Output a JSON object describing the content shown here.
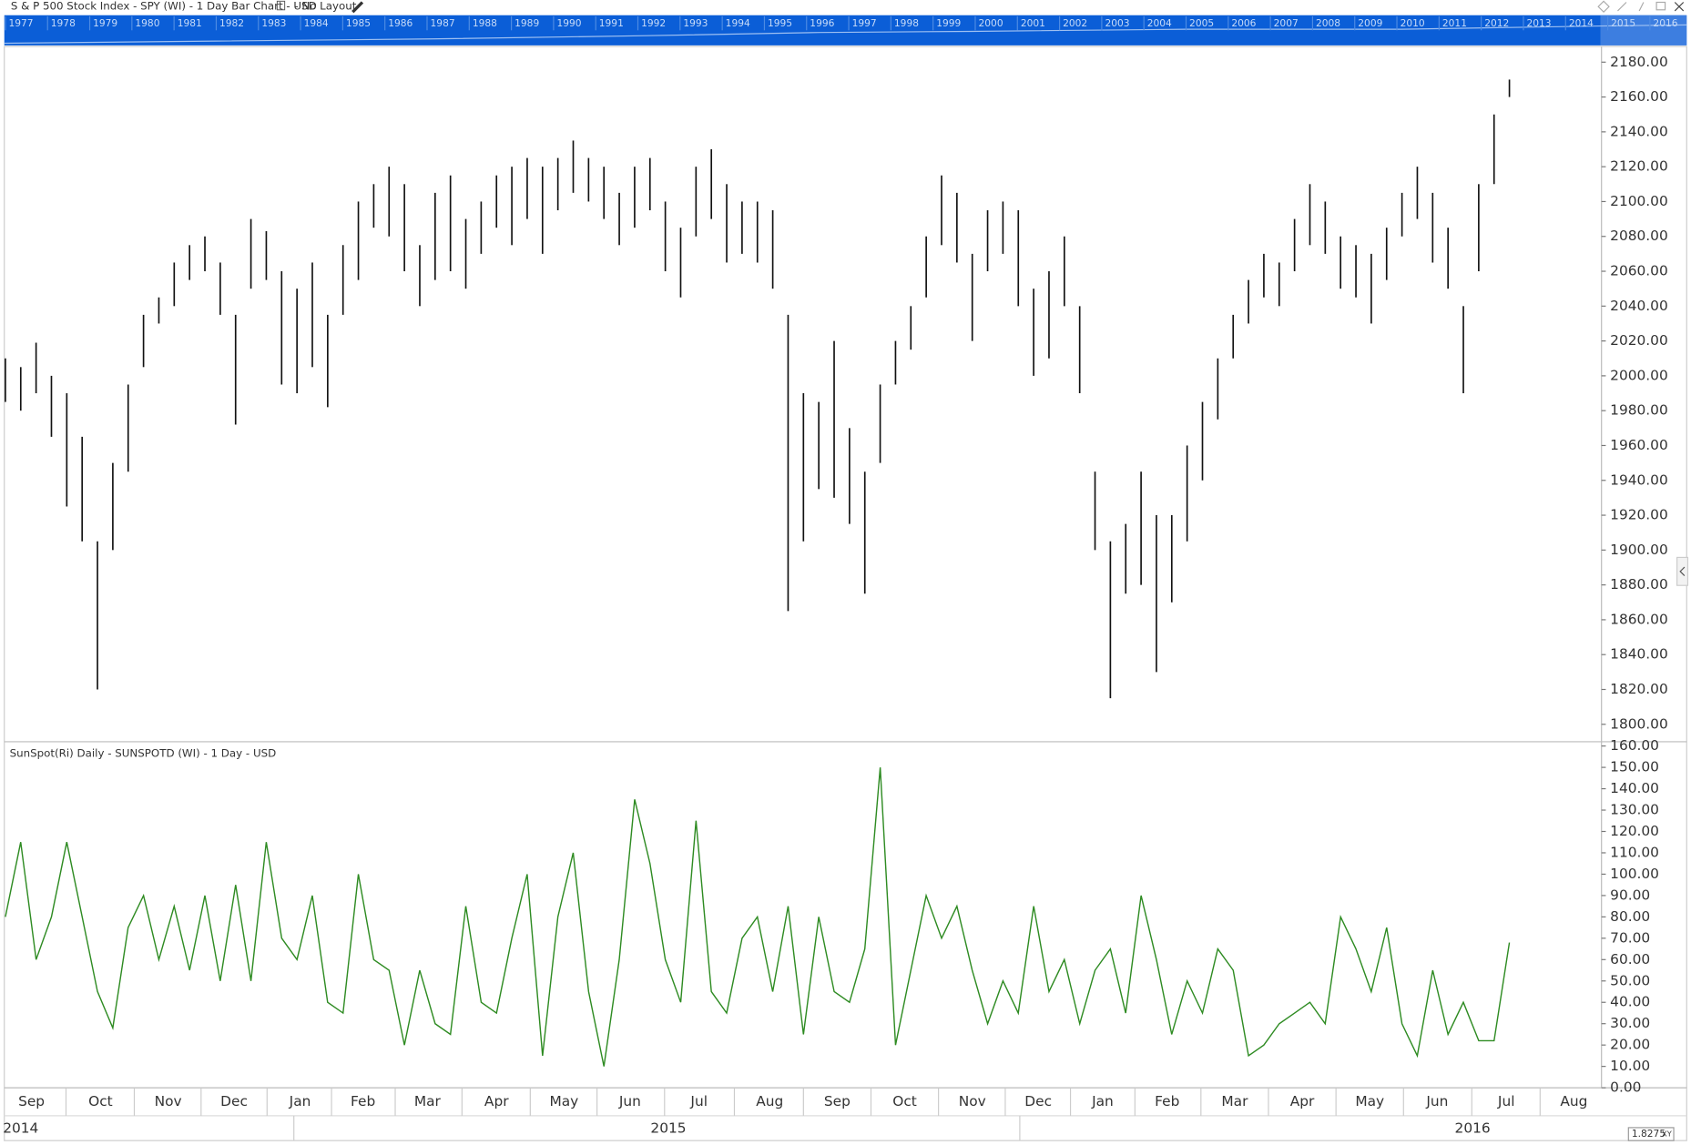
{
  "ui": {
    "layout": "- No Layout",
    "scale_box": "1.8275",
    "xy": "XY"
  },
  "navigator": {
    "years": [
      "1977",
      "1978",
      "1979",
      "1980",
      "1981",
      "1982",
      "1983",
      "1984",
      "1985",
      "1986",
      "1987",
      "1988",
      "1989",
      "1990",
      "1991",
      "1992",
      "1993",
      "1994",
      "1995",
      "1996",
      "1997",
      "1998",
      "1999",
      "2000",
      "2001",
      "2002",
      "2003",
      "2004",
      "2005",
      "2006",
      "2007",
      "2008",
      "2009",
      "2010",
      "2011",
      "2012",
      "2013",
      "2014",
      "2015",
      "2016"
    ]
  },
  "chart_data": [
    {
      "type": "range-bar",
      "title": "S & P 500 Stock Index - SPY (WI) - 1 Day Bar Chart - USD",
      "color": "#111111",
      "x": [
        0,
        1,
        2,
        3,
        4,
        5,
        6,
        7,
        8,
        9,
        10,
        11,
        12,
        13,
        14,
        15,
        16,
        17,
        18,
        19,
        20,
        21,
        22,
        23,
        24,
        25,
        26,
        27,
        28,
        29,
        30,
        31,
        32,
        33,
        34,
        35,
        36,
        37,
        38,
        39,
        40,
        41,
        42,
        43,
        44,
        45,
        46,
        47,
        48,
        49,
        50,
        51,
        52,
        53,
        54,
        55,
        56,
        57,
        58,
        59,
        60,
        61,
        62,
        63,
        64,
        65,
        66,
        67,
        68,
        69,
        70,
        71,
        72,
        73,
        74,
        75,
        76,
        77,
        78,
        79,
        80,
        81,
        82,
        83,
        84,
        85,
        86,
        87,
        88,
        89,
        90,
        91,
        92,
        93,
        94,
        95,
        96,
        97,
        98
      ],
      "high": [
        2010,
        2005,
        2019,
        2000,
        1990,
        1965,
        1905,
        1950,
        1995,
        2035,
        2045,
        2065,
        2075,
        2080,
        2065,
        2035,
        2090,
        2083,
        2060,
        2050,
        2065,
        2035,
        2075,
        2100,
        2110,
        2120,
        2110,
        2075,
        2105,
        2115,
        2090,
        2100,
        2115,
        2120,
        2125,
        2120,
        2125,
        2135,
        2125,
        2120,
        2105,
        2120,
        2125,
        2100,
        2085,
        2120,
        2130,
        2110,
        2100,
        2100,
        2095,
        2035,
        1990,
        1985,
        2020,
        1970,
        1945,
        1995,
        2020,
        2040,
        2080,
        2115,
        2105,
        2070,
        2095,
        2100,
        2095,
        2050,
        2060,
        2080,
        2040,
        1945,
        1905,
        1915,
        1945,
        1920,
        1920,
        1960,
        1985,
        2010,
        2035,
        2055,
        2070,
        2065,
        2090,
        2110,
        2100,
        2080,
        2075,
        2070,
        2085,
        2105,
        2120,
        2105,
        2085,
        2040,
        2110,
        2150,
        2170
      ],
      "low": [
        1985,
        1980,
        1990,
        1965,
        1925,
        1905,
        1820,
        1900,
        1945,
        2005,
        2030,
        2040,
        2055,
        2060,
        2035,
        1972,
        2050,
        2055,
        1995,
        1990,
        2005,
        1982,
        2035,
        2055,
        2085,
        2080,
        2060,
        2040,
        2055,
        2060,
        2050,
        2070,
        2085,
        2075,
        2090,
        2070,
        2095,
        2105,
        2100,
        2090,
        2075,
        2085,
        2095,
        2060,
        2045,
        2080,
        2090,
        2065,
        2070,
        2065,
        2050,
        1865,
        1905,
        1935,
        1930,
        1915,
        1875,
        1950,
        1995,
        2015,
        2045,
        2075,
        2065,
        2020,
        2060,
        2070,
        2040,
        2000,
        2010,
        2040,
        1990,
        1900,
        1815,
        1875,
        1880,
        1830,
        1870,
        1905,
        1940,
        1975,
        2010,
        2030,
        2045,
        2040,
        2060,
        2075,
        2070,
        2050,
        2045,
        2030,
        2055,
        2080,
        2090,
        2065,
        2050,
        1990,
        2060,
        2110,
        2160
      ],
      "xlim": [
        0,
        104
      ],
      "ylim": [
        1790,
        2189
      ],
      "yticks": [
        {
          "value": 1800,
          "label": "1800.00"
        },
        {
          "value": 1820,
          "label": "1820.00"
        },
        {
          "value": 1840,
          "label": "1840.00"
        },
        {
          "value": 1860,
          "label": "1860.00"
        },
        {
          "value": 1880,
          "label": "1880.00"
        },
        {
          "value": 1900,
          "label": "1900.00"
        },
        {
          "value": 1920,
          "label": "1920.00"
        },
        {
          "value": 1940,
          "label": "1940.00"
        },
        {
          "value": 1960,
          "label": "1960.00"
        },
        {
          "value": 1980,
          "label": "1980.00"
        },
        {
          "value": 2000,
          "label": "2000.00"
        },
        {
          "value": 2020,
          "label": "2020.00"
        },
        {
          "value": 2040,
          "label": "2040.00"
        },
        {
          "value": 2060,
          "label": "2060.00"
        },
        {
          "value": 2080,
          "label": "2080.00"
        },
        {
          "value": 2100,
          "label": "2100.00"
        },
        {
          "value": 2120,
          "label": "2120.00"
        },
        {
          "value": 2140,
          "label": "2140.00"
        },
        {
          "value": 2160,
          "label": "2160.00"
        },
        {
          "value": 2180,
          "label": "2180.00"
        }
      ],
      "xticks": [
        {
          "value": 1.7,
          "label": "Sep"
        },
        {
          "value": 6.2,
          "label": "Oct"
        },
        {
          "value": 10.6,
          "label": "Nov"
        },
        {
          "value": 14.9,
          "label": "Dec"
        },
        {
          "value": 19.2,
          "label": "Jan"
        },
        {
          "value": 23.3,
          "label": "Feb"
        },
        {
          "value": 27.5,
          "label": "Mar"
        },
        {
          "value": 32.0,
          "label": "Apr"
        },
        {
          "value": 36.4,
          "label": "May"
        },
        {
          "value": 40.7,
          "label": "Jun"
        },
        {
          "value": 45.2,
          "label": "Jul"
        },
        {
          "value": 49.8,
          "label": "Aug"
        },
        {
          "value": 54.2,
          "label": "Sep"
        },
        {
          "value": 58.6,
          "label": "Oct"
        },
        {
          "value": 63.0,
          "label": "Nov"
        },
        {
          "value": 67.3,
          "label": "Dec"
        },
        {
          "value": 71.5,
          "label": "Jan"
        },
        {
          "value": 75.7,
          "label": "Feb"
        },
        {
          "value": 80.1,
          "label": "Mar"
        },
        {
          "value": 84.5,
          "label": "Apr"
        },
        {
          "value": 88.9,
          "label": "May"
        },
        {
          "value": 93.3,
          "label": "Jun"
        },
        {
          "value": 97.8,
          "label": "Jul"
        },
        {
          "value": 102.2,
          "label": "Aug"
        }
      ],
      "year_ticks": [
        {
          "value": 1.0,
          "label": "2014"
        },
        {
          "value": 43.2,
          "label": "2015"
        },
        {
          "value": 95.6,
          "label": "2016"
        }
      ]
    },
    {
      "type": "line",
      "title": "SunSpot(Ri) Daily - SUNSPOTD (WI) - 1 Day - USD",
      "color": "#2e8b22",
      "x": [
        0,
        1,
        2,
        3,
        4,
        5,
        6,
        7,
        8,
        9,
        10,
        11,
        12,
        13,
        14,
        15,
        16,
        17,
        18,
        19,
        20,
        21,
        22,
        23,
        24,
        25,
        26,
        27,
        28,
        29,
        30,
        31,
        32,
        33,
        34,
        35,
        36,
        37,
        38,
        39,
        40,
        41,
        42,
        43,
        44,
        45,
        46,
        47,
        48,
        49,
        50,
        51,
        52,
        53,
        54,
        55,
        56,
        57,
        58,
        59,
        60,
        61,
        62,
        63,
        64,
        65,
        66,
        67,
        68,
        69,
        70,
        71,
        72,
        73,
        74,
        75,
        76,
        77,
        78,
        79,
        80,
        81,
        82,
        83,
        84,
        85,
        86,
        87,
        88,
        89,
        90,
        91,
        92,
        93,
        94,
        95,
        96,
        97,
        98
      ],
      "values": [
        80,
        115,
        60,
        80,
        115,
        80,
        45,
        28,
        75,
        90,
        60,
        85,
        55,
        90,
        50,
        95,
        50,
        115,
        70,
        60,
        90,
        40,
        35,
        100,
        60,
        55,
        20,
        55,
        30,
        25,
        85,
        40,
        35,
        70,
        100,
        15,
        80,
        110,
        45,
        10,
        60,
        135,
        105,
        60,
        40,
        125,
        45,
        35,
        70,
        80,
        45,
        85,
        25,
        80,
        45,
        40,
        65,
        150,
        20,
        55,
        90,
        70,
        85,
        55,
        30,
        50,
        35,
        85,
        45,
        60,
        30,
        55,
        65,
        35,
        90,
        60,
        25,
        50,
        35,
        65,
        55,
        15,
        20,
        30,
        35,
        40,
        30,
        80,
        65,
        45,
        75,
        30,
        15,
        55,
        25,
        40,
        22,
        22,
        68
      ],
      "xlim": [
        0,
        104
      ],
      "ylim": [
        0,
        161.5
      ],
      "yticks": [
        {
          "value": 0,
          "label": "0.00"
        },
        {
          "value": 10,
          "label": "10.00"
        },
        {
          "value": 20,
          "label": "20.00"
        },
        {
          "value": 30,
          "label": "30.00"
        },
        {
          "value": 40,
          "label": "40.00"
        },
        {
          "value": 50,
          "label": "50.00"
        },
        {
          "value": 60,
          "label": "60.00"
        },
        {
          "value": 70,
          "label": "70.00"
        },
        {
          "value": 80,
          "label": "80.00"
        },
        {
          "value": 90,
          "label": "90.00"
        },
        {
          "value": 100,
          "label": "100.00"
        },
        {
          "value": 110,
          "label": "110.00"
        },
        {
          "value": 120,
          "label": "120.00"
        },
        {
          "value": 130,
          "label": "130.00"
        },
        {
          "value": 140,
          "label": "140.00"
        },
        {
          "value": 150,
          "label": "150.00"
        },
        {
          "value": 160,
          "label": "160.00"
        }
      ]
    }
  ]
}
